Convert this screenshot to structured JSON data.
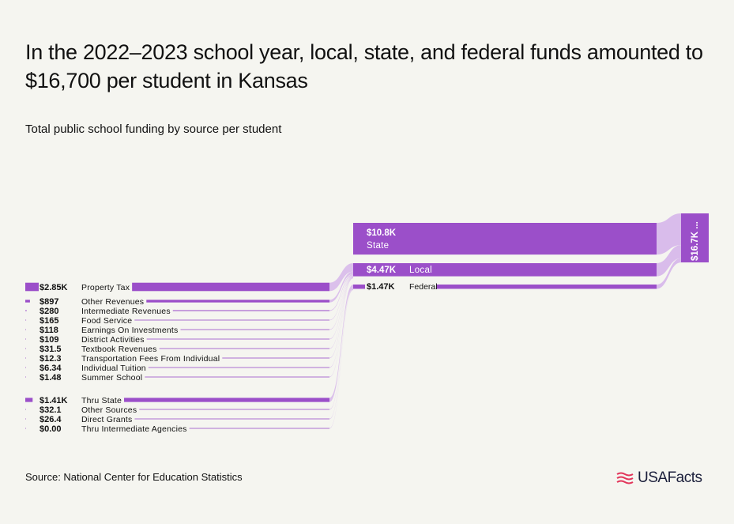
{
  "title": "In the 2022–2023 school year, local, state, and federal funds amounted to $16,700 per student in Kansas",
  "subtitle": "Total public school funding by source per student",
  "source": "Source: National Center for Education Statistics",
  "logo_text": "USAFacts",
  "colors": {
    "bar": "#9b4fc9",
    "link": "#d6b6ea",
    "text": "#111111",
    "background": "#f5f5f0",
    "logo_flag": "#e2365b"
  },
  "chart_data": {
    "type": "sankey",
    "units": "USD per student",
    "total": {
      "value": 16700,
      "label": "$16.7K ..."
    },
    "sources": [
      {
        "name": "State",
        "value": 10800,
        "label": "$10.8K"
      },
      {
        "name": "Local",
        "value": 4470,
        "label": "$4.47K"
      },
      {
        "name": "Federal",
        "value": 1470,
        "label": "$1.47K"
      }
    ],
    "local_items": [
      {
        "name": "Property Tax",
        "value": 2850,
        "label": "$2.85K"
      },
      {
        "name": "Other Revenues",
        "value": 897,
        "label": "$897"
      },
      {
        "name": "Intermediate Revenues",
        "value": 280,
        "label": "$280"
      },
      {
        "name": "Food Service",
        "value": 165,
        "label": "$165"
      },
      {
        "name": "Earnings On Investments",
        "value": 118,
        "label": "$118"
      },
      {
        "name": "District Activities",
        "value": 109,
        "label": "$109"
      },
      {
        "name": "Textbook Revenues",
        "value": 31.5,
        "label": "$31.5"
      },
      {
        "name": "Transportation Fees From Individual",
        "value": 12.3,
        "label": "$12.3"
      },
      {
        "name": "Individual Tuition",
        "value": 6.34,
        "label": "$6.34"
      },
      {
        "name": "Summer School",
        "value": 1.48,
        "label": "$1.48"
      }
    ],
    "federal_items": [
      {
        "name": "Thru State",
        "value": 1410,
        "label": "$1.41K"
      },
      {
        "name": "Other Sources",
        "value": 32.1,
        "label": "$32.1"
      },
      {
        "name": "Direct Grants",
        "value": 26.4,
        "label": "$26.4"
      },
      {
        "name": "Thru Intermediate Agencies",
        "value": 0.0,
        "label": "$0.00"
      }
    ]
  }
}
